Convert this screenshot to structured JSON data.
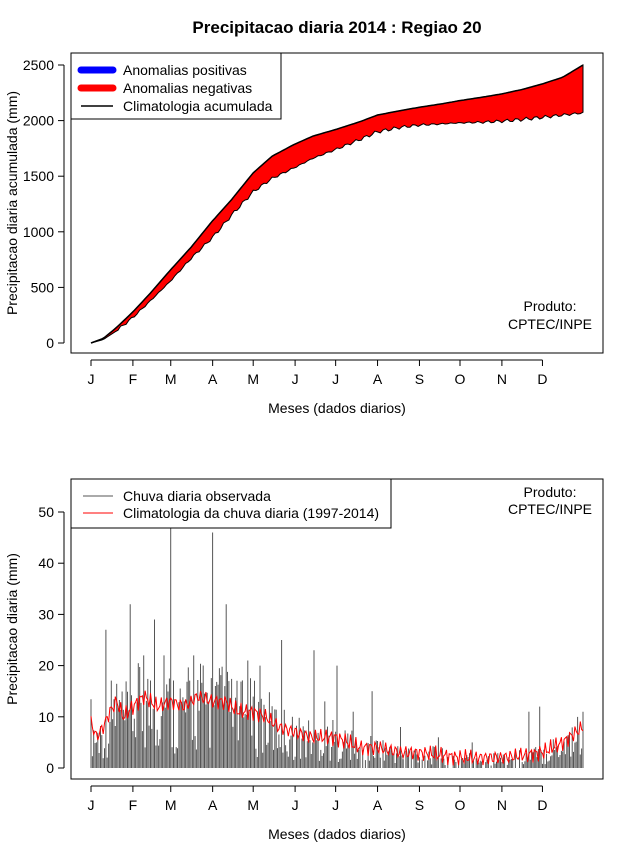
{
  "page_title": "Precipitacao diaria 2014 : Regiao 20",
  "chart_data": [
    {
      "type": "area",
      "name": "accumulated",
      "title": "Precipitacao diaria 2014 : Regiao 20",
      "xlabel": "Meses (dados diarios)",
      "ylabel": "Precipitacao diaria acumulada (mm)",
      "x_ticks": [
        "J",
        "F",
        "M",
        "A",
        "M",
        "J",
        "J",
        "A",
        "S",
        "O",
        "N",
        "D"
      ],
      "x_tick_days": [
        1,
        32,
        60,
        91,
        121,
        152,
        182,
        213,
        244,
        274,
        305,
        335
      ],
      "xlim": [
        1,
        365
      ],
      "ylim": [
        0,
        2500
      ],
      "y_ticks": [
        0,
        500,
        1000,
        1500,
        2000,
        2500
      ],
      "credit": [
        "Produto:",
        "CPTEC/INPE"
      ],
      "legend": [
        {
          "label": "Anomalias positivas",
          "color": "#0000ff"
        },
        {
          "label": "Anomalias negativas",
          "color": "#ff0000"
        },
        {
          "label": "Climatologia acumulada",
          "color": "#000000"
        }
      ],
      "series": [
        {
          "name": "Climatologia acumulada",
          "x": [
            1,
            10,
            20,
            32,
            45,
            60,
            75,
            91,
            105,
            121,
            135,
            152,
            165,
            182,
            200,
            213,
            230,
            244,
            260,
            274,
            290,
            305,
            320,
            335,
            350,
            365
          ],
          "values": [
            0,
            40,
            140,
            280,
            450,
            660,
            860,
            1100,
            1290,
            1530,
            1680,
            1790,
            1860,
            1920,
            1990,
            2050,
            2090,
            2120,
            2150,
            2180,
            2210,
            2240,
            2280,
            2330,
            2390,
            2500
          ]
        },
        {
          "name": "Observado acumulado",
          "x": [
            1,
            10,
            20,
            32,
            45,
            60,
            75,
            91,
            105,
            121,
            135,
            152,
            165,
            182,
            200,
            213,
            230,
            244,
            260,
            274,
            290,
            305,
            320,
            335,
            350,
            365
          ],
          "values": [
            0,
            30,
            110,
            230,
            380,
            560,
            760,
            950,
            1150,
            1360,
            1480,
            1580,
            1660,
            1740,
            1830,
            1900,
            1940,
            1960,
            1970,
            1980,
            1985,
            1995,
            2010,
            2030,
            2050,
            2070
          ]
        }
      ]
    },
    {
      "type": "line",
      "name": "daily",
      "xlabel": "Meses (dados diarios)",
      "ylabel": "Precipitacao diaria (mm)",
      "x_ticks": [
        "J",
        "F",
        "M",
        "A",
        "M",
        "J",
        "J",
        "A",
        "S",
        "O",
        "N",
        "D"
      ],
      "x_tick_days": [
        1,
        32,
        60,
        91,
        121,
        152,
        182,
        213,
        244,
        274,
        305,
        335
      ],
      "xlim": [
        1,
        365
      ],
      "ylim": [
        0,
        50
      ],
      "y_ticks": [
        0,
        10,
        20,
        30,
        40,
        50
      ],
      "credit": [
        "Produto:",
        "CPTEC/INPE"
      ],
      "legend": [
        {
          "label": "Chuva diaria observada",
          "color": "#555555"
        },
        {
          "label": "Climatologia da chuva diaria (1997-2014)",
          "color": "#ff0000"
        }
      ],
      "climatology": {
        "x": [
          1,
          5,
          10,
          15,
          20,
          25,
          32,
          40,
          50,
          60,
          70,
          80,
          91,
          100,
          110,
          121,
          130,
          140,
          152,
          165,
          182,
          200,
          213,
          230,
          244,
          260,
          274,
          290,
          305,
          320,
          335,
          350,
          365
        ],
        "values": [
          9,
          6,
          8,
          11,
          13,
          10,
          12,
          14,
          12,
          13,
          12,
          14,
          13,
          13,
          11,
          11,
          10,
          8,
          7,
          6,
          6,
          4,
          4,
          3,
          3,
          2.5,
          2,
          2,
          2,
          2.5,
          3,
          5,
          8
        ]
      },
      "observed_peaks": {
        "x": [
          12,
          30,
          40,
          48,
          55,
          60,
          77,
          91,
          101,
          117,
          126,
          142,
          150,
          166,
          174,
          183,
          195,
          209,
          230,
          258,
          283,
          325,
          333,
          355,
          365
        ],
        "values": [
          27,
          32,
          22,
          29,
          22,
          47,
          22,
          46,
          32,
          21,
          20,
          25,
          10,
          23,
          13,
          20,
          11,
          15,
          8,
          6,
          5,
          11,
          12,
          7,
          11
        ]
      }
    }
  ]
}
